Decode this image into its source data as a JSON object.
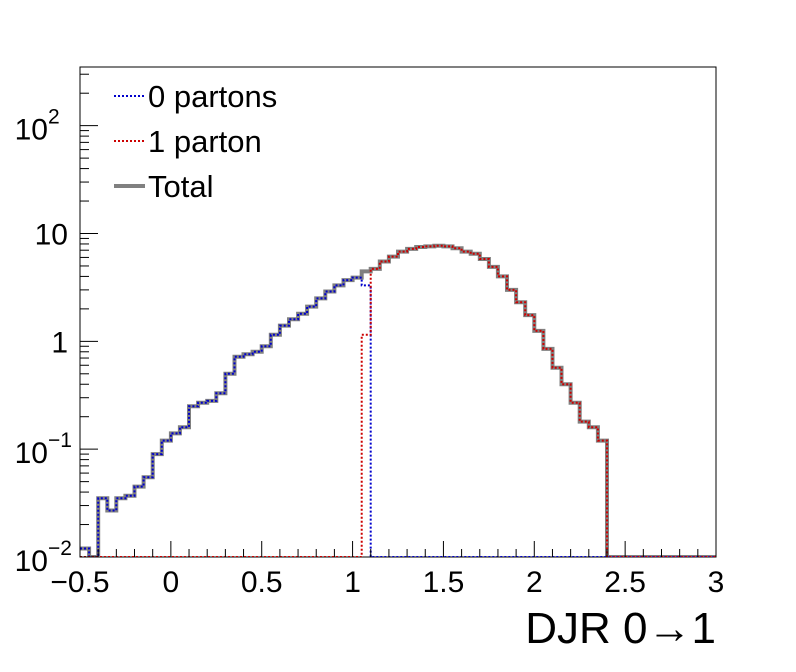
{
  "chart_data": {
    "type": "line",
    "title": "",
    "xlabel": "DJR 0→1",
    "ylabel": "",
    "xlim": [
      -0.5,
      3.0
    ],
    "ylim": [
      0.01,
      350
    ],
    "log_y": true,
    "grid": false,
    "legend_position": "top-left",
    "x_ticks": [
      {
        "value": -0.5,
        "label": "−0.5"
      },
      {
        "value": 0,
        "label": "0"
      },
      {
        "value": 0.5,
        "label": "0.5"
      },
      {
        "value": 1,
        "label": "1"
      },
      {
        "value": 1.5,
        "label": "1.5"
      },
      {
        "value": 2,
        "label": "2"
      },
      {
        "value": 2.5,
        "label": "2.5"
      },
      {
        "value": 3,
        "label": "3"
      }
    ],
    "y_ticks": [
      {
        "value": 0.01,
        "base": "10",
        "exp": "−2"
      },
      {
        "value": 0.1,
        "base": "10",
        "exp": "−1"
      },
      {
        "value": 1,
        "base": "1",
        "exp": ""
      },
      {
        "value": 10,
        "base": "10",
        "exp": ""
      },
      {
        "value": 100,
        "base": "10",
        "exp": "2"
      }
    ],
    "bin_edges": [
      -0.5,
      -0.45,
      -0.4,
      -0.35,
      -0.3,
      -0.25,
      -0.2,
      -0.15,
      -0.1,
      -0.05,
      0.0,
      0.05,
      0.1,
      0.15,
      0.2,
      0.25,
      0.3,
      0.35,
      0.4,
      0.45,
      0.5,
      0.55,
      0.6,
      0.65,
      0.7,
      0.75,
      0.8,
      0.85,
      0.9,
      0.95,
      1.0,
      1.05,
      1.1,
      1.15,
      1.2,
      1.25,
      1.3,
      1.35,
      1.4,
      1.45,
      1.5,
      1.55,
      1.6,
      1.65,
      1.7,
      1.75,
      1.8,
      1.85,
      1.9,
      1.95,
      2.0,
      2.05,
      2.1,
      2.15,
      2.2,
      2.25,
      2.3,
      2.35,
      2.4,
      2.45,
      2.5,
      2.55,
      2.6,
      2.65,
      2.7,
      2.75,
      2.8,
      2.85,
      2.9,
      2.95,
      3.0
    ],
    "series": [
      {
        "name": "0 partons",
        "color": "#0000cc",
        "style": "dotted",
        "values": [
          0.012,
          0.01,
          0.035,
          0.027,
          0.035,
          0.037,
          0.045,
          0.055,
          0.09,
          0.12,
          0.14,
          0.16,
          0.25,
          0.27,
          0.28,
          0.33,
          0.5,
          0.72,
          0.76,
          0.8,
          0.9,
          1.15,
          1.4,
          1.6,
          1.8,
          2.1,
          2.5,
          2.9,
          3.3,
          3.7,
          3.9,
          3.3,
          0.01,
          0.01,
          0.01,
          0.01,
          0.01,
          0.01,
          0.01,
          0.01,
          0.01,
          0.01,
          0.01,
          0.01,
          0.01,
          0.01,
          0.01,
          0.01,
          0.01,
          0.01,
          0.01,
          0.01,
          0.01,
          0.01,
          0.01,
          0.01,
          0.01,
          0.01,
          0.01,
          0.01,
          0.01,
          0.01,
          0.01,
          0.01,
          0.01,
          0.01,
          0.01,
          0.01,
          0.01,
          0.01
        ]
      },
      {
        "name": "1 parton",
        "color": "#cc0000",
        "style": "dotted",
        "values": [
          0.01,
          0.01,
          0.01,
          0.01,
          0.01,
          0.01,
          0.01,
          0.01,
          0.01,
          0.01,
          0.01,
          0.01,
          0.01,
          0.01,
          0.01,
          0.01,
          0.01,
          0.01,
          0.01,
          0.01,
          0.01,
          0.01,
          0.01,
          0.01,
          0.01,
          0.01,
          0.01,
          0.01,
          0.01,
          0.01,
          0.01,
          1.15,
          4.7,
          5.5,
          6.1,
          6.8,
          7.2,
          7.5,
          7.6,
          7.7,
          7.6,
          7.3,
          6.8,
          6.5,
          5.8,
          4.9,
          4.0,
          3.0,
          2.3,
          1.75,
          1.25,
          0.85,
          0.57,
          0.4,
          0.27,
          0.18,
          0.16,
          0.12,
          0.01,
          0.01,
          0.01,
          0.01,
          0.01,
          0.01,
          0.01,
          0.01,
          0.01,
          0.01,
          0.01,
          0.01
        ]
      },
      {
        "name": "Total",
        "color": "#808080",
        "style": "solid",
        "values": [
          0.012,
          0.01,
          0.035,
          0.027,
          0.035,
          0.037,
          0.045,
          0.055,
          0.09,
          0.12,
          0.14,
          0.16,
          0.25,
          0.27,
          0.28,
          0.33,
          0.5,
          0.72,
          0.76,
          0.8,
          0.9,
          1.15,
          1.4,
          1.6,
          1.8,
          2.1,
          2.5,
          2.9,
          3.3,
          3.7,
          3.9,
          4.45,
          4.7,
          5.5,
          6.1,
          6.8,
          7.2,
          7.5,
          7.6,
          7.7,
          7.6,
          7.3,
          6.8,
          6.5,
          5.8,
          4.9,
          4.0,
          3.0,
          2.3,
          1.75,
          1.25,
          0.85,
          0.57,
          0.4,
          0.27,
          0.18,
          0.16,
          0.12,
          0.01,
          0.01,
          0.01,
          0.01,
          0.01,
          0.01,
          0.01,
          0.01,
          0.01,
          0.01,
          0.01,
          0.01
        ]
      }
    ]
  }
}
